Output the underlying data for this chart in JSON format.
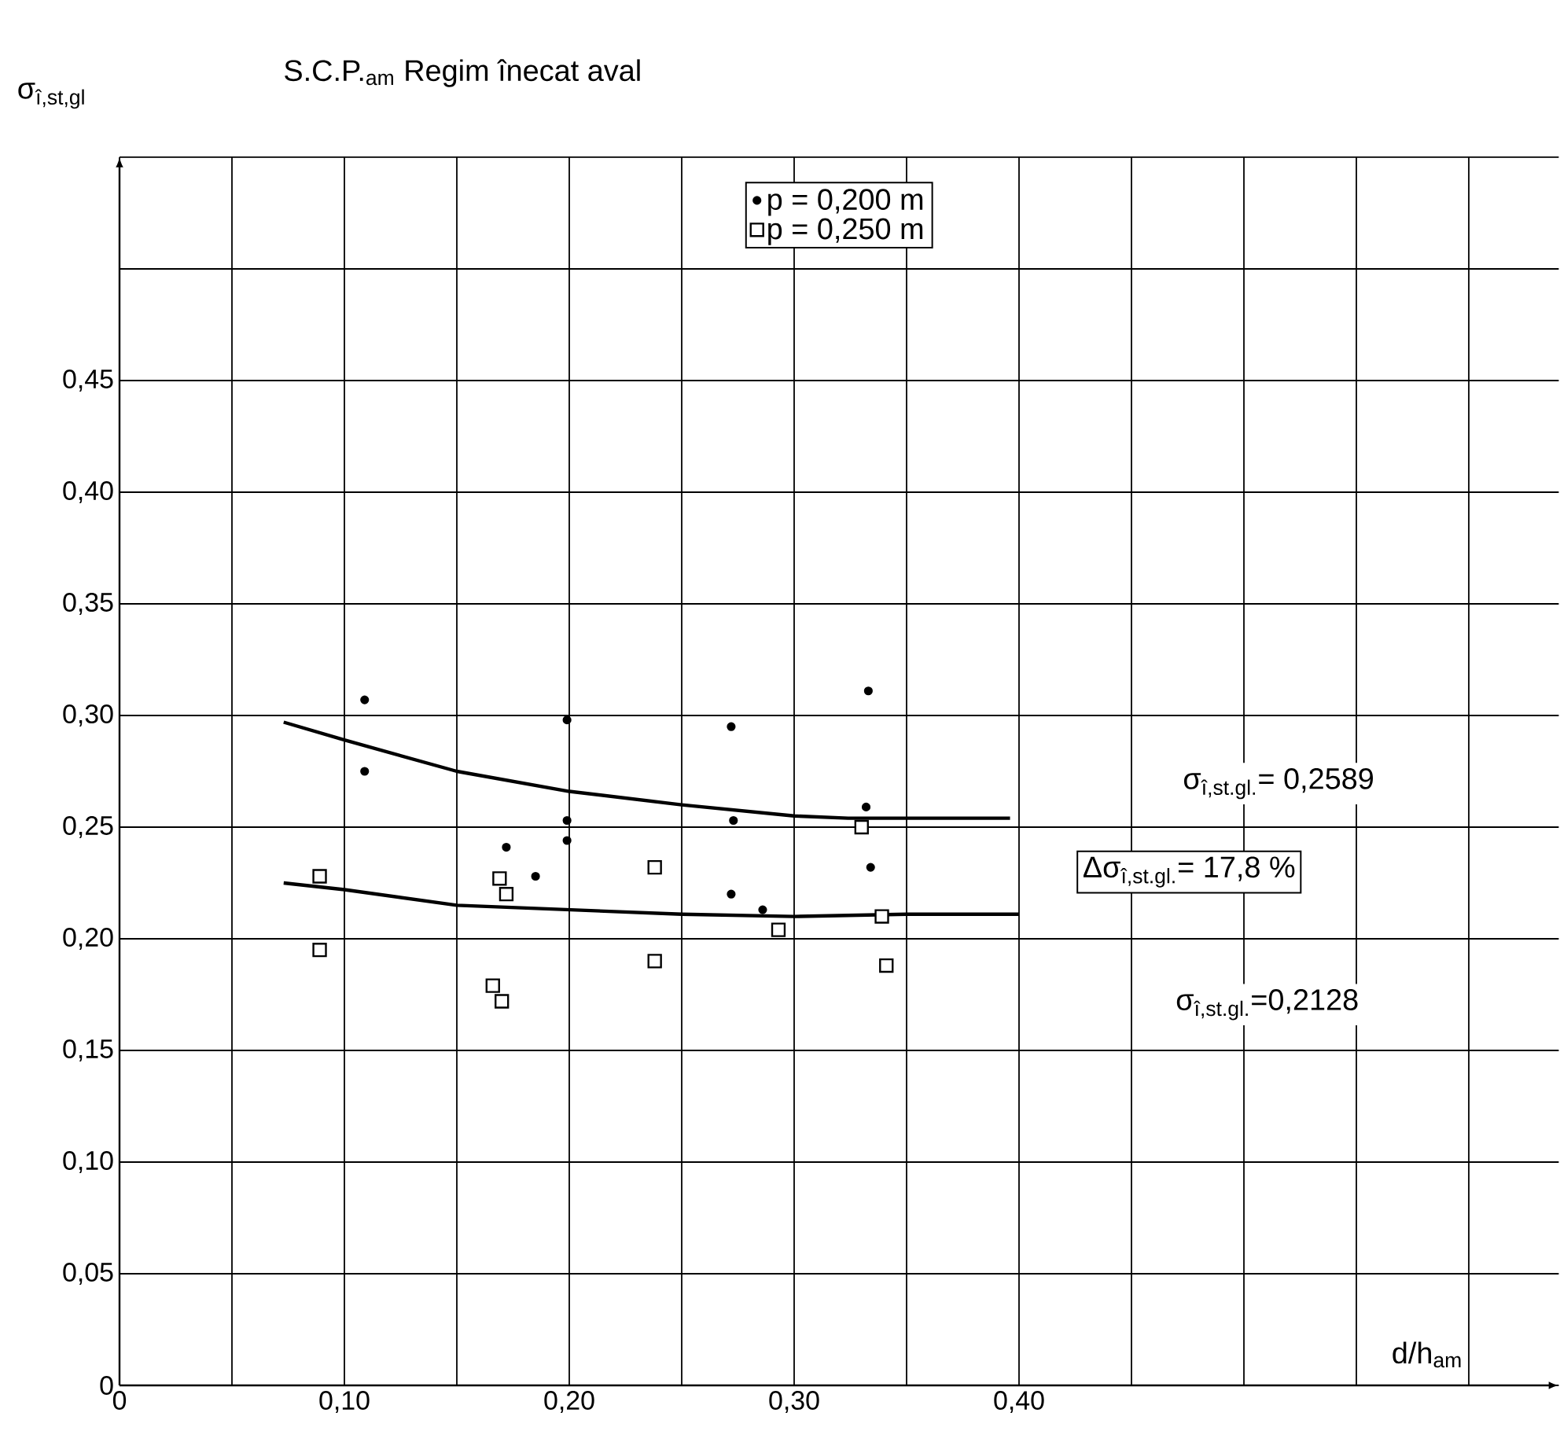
{
  "chart_data": {
    "type": "scatter",
    "title": "S.C.P.$_{am}$ Regim înecat aval",
    "xlabel": "d/h$_{am}$",
    "ylabel": "σ$_{î,st,gl}$",
    "xlim": [
      0,
      0.64
    ],
    "ylim": [
      0,
      0.55
    ],
    "xticks": [
      {
        "value": 0,
        "label": "0"
      },
      {
        "value": 0.05,
        "label": null
      },
      {
        "value": 0.1,
        "label": "0,10"
      },
      {
        "value": 0.15,
        "label": null
      },
      {
        "value": 0.2,
        "label": "0,20"
      },
      {
        "value": 0.25,
        "label": null
      },
      {
        "value": 0.3,
        "label": "0,30"
      },
      {
        "value": 0.35,
        "label": null
      },
      {
        "value": 0.4,
        "label": "0,40"
      },
      {
        "value": 0.45,
        "label": null
      },
      {
        "value": 0.5,
        "label": null
      },
      {
        "value": 0.55,
        "label": null
      },
      {
        "value": 0.6,
        "label": null
      }
    ],
    "yticks": [
      {
        "value": 0,
        "label": "0"
      },
      {
        "value": 0.05,
        "label": "0,05"
      },
      {
        "value": 0.1,
        "label": "0,10"
      },
      {
        "value": 0.15,
        "label": "0,15"
      },
      {
        "value": 0.2,
        "label": "0,20"
      },
      {
        "value": 0.25,
        "label": "0,25"
      },
      {
        "value": 0.3,
        "label": "0,30"
      },
      {
        "value": 0.35,
        "label": "0,35"
      },
      {
        "value": 0.4,
        "label": "0,40"
      },
      {
        "value": 0.45,
        "label": "0,45"
      },
      {
        "value": 0.5,
        "label": null
      },
      {
        "value": 0.55,
        "label": null
      }
    ],
    "grid": true,
    "legend": "top",
    "series": [
      {
        "name": "p = 0,200 m",
        "color": "#000000",
        "marker": "circle",
        "x": [
          0.109,
          0.109,
          0.199,
          0.199,
          0.199,
          0.172,
          0.185,
          0.272,
          0.273,
          0.272,
          0.286,
          0.333,
          0.332,
          0.334
        ],
        "values": [
          0.307,
          0.275,
          0.298,
          0.253,
          0.244,
          0.241,
          0.228,
          0.295,
          0.253,
          0.22,
          0.213,
          0.311,
          0.259,
          0.232
        ]
      },
      {
        "name": "p = 0,250 m",
        "color": "#000000",
        "marker": "square",
        "x": [
          0.089,
          0.089,
          0.169,
          0.172,
          0.166,
          0.17,
          0.238,
          0.238,
          0.33,
          0.339,
          0.293,
          0.341
        ],
        "values": [
          0.228,
          0.195,
          0.227,
          0.22,
          0.179,
          0.172,
          0.232,
          0.19,
          0.25,
          0.21,
          0.204,
          0.188
        ]
      },
      {
        "type": "line",
        "color": "#000000",
        "marker": "none",
        "line_style": "solid",
        "x": [
          0.073,
          0.1,
          0.15,
          0.2,
          0.25,
          0.3,
          0.324,
          0.396
        ],
        "values": [
          0.297,
          0.289,
          0.275,
          0.266,
          0.26,
          0.255,
          0.254,
          0.254
        ]
      },
      {
        "type": "line",
        "color": "#000000",
        "marker": "none",
        "line_style": "solid",
        "x": [
          0.073,
          0.1,
          0.15,
          0.2,
          0.25,
          0.3,
          0.35,
          0.4
        ],
        "values": [
          0.225,
          0.222,
          0.215,
          0.213,
          0.211,
          0.21,
          0.211,
          0.211
        ]
      }
    ],
    "annotations": [
      "σ$_{î,st.gl.}$= 0,2589",
      "Δσ$_{î,st.gl.}$= 17,8 %",
      "σ$_{î,st.gl.}$=0,2128"
    ]
  }
}
